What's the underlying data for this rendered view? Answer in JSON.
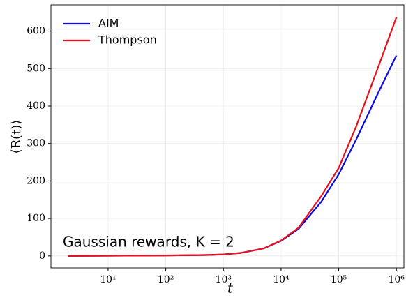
{
  "chart_data": {
    "type": "line",
    "xlabel": "t",
    "ylabel": "⟨R(t)⟩",
    "annotation": "Gaussian rewards, K = 2",
    "x": [
      2,
      5,
      10,
      20,
      50,
      100,
      200,
      500,
      1000,
      2000,
      5000,
      10000,
      20000,
      50000,
      100000,
      200000,
      500000,
      1000000
    ],
    "series": [
      {
        "name": "AIM",
        "color": "#0a0ae6",
        "values": [
          0,
          0.3,
          0.5,
          0.8,
          1,
          1.3,
          1.8,
          2.5,
          4,
          8,
          20,
          40,
          72,
          145,
          218,
          310,
          440,
          535
        ]
      },
      {
        "name": "Thompson",
        "color": "#e8101a",
        "values": [
          0,
          0.3,
          0.5,
          0.8,
          1,
          1.3,
          1.8,
          2.5,
          4,
          8,
          20,
          41,
          75,
          160,
          235,
          345,
          510,
          637
        ]
      }
    ],
    "xscale": "log",
    "xlim": [
      1.02,
      1350000
    ],
    "xticks": [
      {
        "value": 10,
        "label": "10¹"
      },
      {
        "value": 100,
        "label": "10²"
      },
      {
        "value": 1000,
        "label": "10³"
      },
      {
        "value": 10000,
        "label": "10⁴"
      },
      {
        "value": 100000,
        "label": "10⁵"
      },
      {
        "value": 1000000,
        "label": "10⁶"
      }
    ],
    "ylim": [
      -32,
      670
    ],
    "yticks": [
      0,
      100,
      200,
      300,
      400,
      500,
      600
    ],
    "grid": true,
    "legend": "upper left"
  }
}
